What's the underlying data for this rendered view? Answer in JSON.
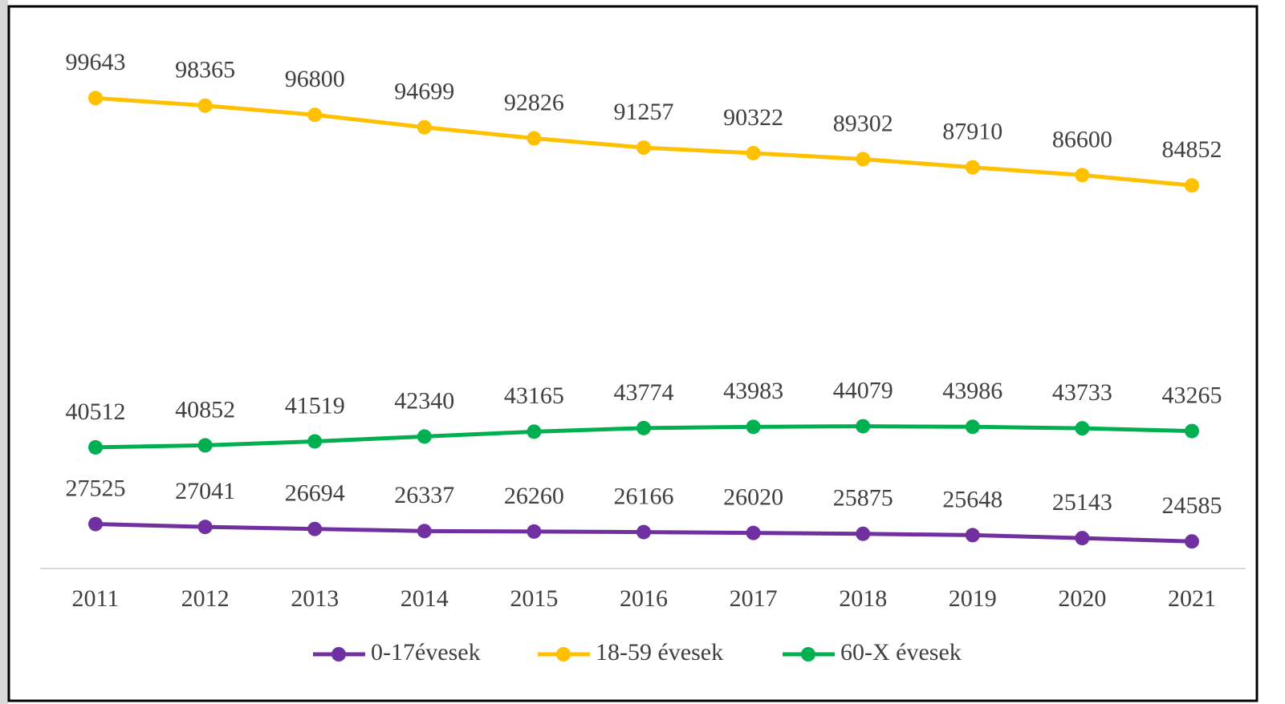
{
  "chart_data": {
    "type": "line",
    "categories": [
      "2011",
      "2012",
      "2013",
      "2014",
      "2015",
      "2016",
      "2017",
      "2018",
      "2019",
      "2020",
      "2021"
    ],
    "series": [
      {
        "name": "0-17évesek",
        "color": "#7030a0",
        "values": [
          27525,
          27041,
          26694,
          26337,
          26260,
          26166,
          26020,
          25875,
          25648,
          25143,
          24585
        ]
      },
      {
        "name": "18-59 évesek",
        "color": "#ffc000",
        "values": [
          99643,
          98365,
          96800,
          94699,
          92826,
          91257,
          90322,
          89302,
          87910,
          86600,
          84852
        ]
      },
      {
        "name": "60-X évesek",
        "color": "#00b050",
        "values": [
          40512,
          40852,
          41519,
          42340,
          43165,
          43774,
          43983,
          44079,
          43986,
          43733,
          43265
        ]
      }
    ],
    "ylim": [
      20000,
      110000
    ],
    "legend": "bottom"
  }
}
